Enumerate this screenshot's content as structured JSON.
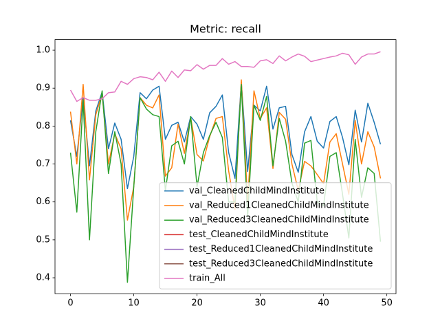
{
  "chart_data": {
    "type": "line",
    "title": "Metric: recall",
    "x": [
      0,
      1,
      2,
      3,
      4,
      5,
      6,
      7,
      8,
      9,
      10,
      11,
      12,
      13,
      14,
      15,
      16,
      17,
      18,
      19,
      20,
      21,
      22,
      23,
      24,
      25,
      26,
      27,
      28,
      29,
      30,
      31,
      32,
      33,
      34,
      35,
      36,
      37,
      38,
      39,
      40,
      41,
      42,
      43,
      44,
      45,
      46,
      47,
      48,
      49
    ],
    "xlim": [
      -2.45,
      51.45
    ],
    "xticks": [
      0,
      10,
      20,
      30,
      40,
      50
    ],
    "ylim": [
      0.358,
      1.028
    ],
    "yticks": [
      0.4,
      0.5,
      0.6,
      0.7,
      0.8,
      0.9,
      {
        "value": 1,
        "label": "1.0"
      }
    ],
    "legend": "lower right",
    "series": [
      {
        "name": "val_CleanedChildMindInstitute",
        "color": "#1f77b4",
        "values": [
          0.815,
          0.72,
          0.875,
          0.695,
          0.84,
          0.89,
          0.74,
          0.808,
          0.765,
          0.635,
          0.72,
          0.888,
          0.872,
          0.895,
          0.905,
          0.765,
          0.802,
          0.81,
          0.758,
          0.825,
          0.805,
          0.765,
          0.835,
          0.852,
          0.882,
          0.73,
          0.662,
          0.915,
          0.68,
          0.855,
          0.84,
          0.905,
          0.792,
          0.848,
          0.852,
          0.725,
          0.678,
          0.785,
          0.825,
          0.76,
          0.742,
          0.812,
          0.825,
          0.77,
          0.698,
          0.842,
          0.758,
          0.86,
          0.81,
          0.752
        ]
      },
      {
        "name": "val_Reduced1CleanedChildMindInstitute",
        "color": "#ff7f0e",
        "values": [
          0.838,
          0.7,
          0.91,
          0.658,
          0.83,
          0.885,
          0.7,
          0.78,
          0.74,
          0.552,
          0.64,
          0.875,
          0.855,
          0.848,
          0.882,
          0.668,
          0.69,
          0.805,
          0.728,
          0.822,
          0.725,
          0.708,
          0.772,
          0.82,
          0.825,
          0.682,
          0.58,
          0.922,
          0.6,
          0.893,
          0.82,
          0.848,
          0.688,
          0.836,
          0.818,
          0.7,
          0.63,
          0.707,
          0.695,
          0.672,
          0.648,
          0.758,
          0.78,
          0.7,
          0.62,
          0.815,
          0.7,
          0.785,
          0.745,
          0.662
        ]
      },
      {
        "name": "val_Reduced3CleanedChildMindInstitute",
        "color": "#2ca02c",
        "values": [
          0.73,
          0.573,
          0.868,
          0.5,
          0.785,
          0.893,
          0.675,
          0.785,
          0.7,
          0.388,
          0.64,
          0.875,
          0.845,
          0.83,
          0.825,
          0.63,
          0.748,
          0.76,
          0.7,
          0.825,
          0.64,
          0.73,
          0.775,
          0.81,
          0.77,
          0.6,
          0.6,
          0.91,
          0.56,
          0.855,
          0.815,
          0.878,
          0.695,
          0.82,
          0.76,
          0.65,
          0.6,
          0.755,
          0.762,
          0.6,
          0.59,
          0.72,
          0.73,
          0.62,
          0.505,
          0.765,
          0.612,
          0.69,
          0.675,
          0.495
        ]
      },
      {
        "name": "test_CleanedChildMindInstitute",
        "color": "#d62728",
        "values": [
          null,
          null,
          null,
          null,
          null,
          null,
          null,
          null,
          null,
          null,
          null,
          null,
          null,
          null,
          null,
          null,
          null,
          null,
          null,
          null,
          null,
          null,
          null,
          null,
          null,
          null,
          null,
          null,
          null,
          null,
          null,
          null,
          null,
          null,
          null,
          null,
          null,
          null,
          null,
          null,
          null,
          null,
          null,
          null,
          null,
          null,
          null,
          null,
          null,
          null
        ]
      },
      {
        "name": "test_Reduced1CleanedChildMindInstitute",
        "color": "#9467bd",
        "values": [
          null,
          null,
          null,
          null,
          null,
          null,
          null,
          null,
          null,
          null,
          null,
          null,
          null,
          null,
          null,
          null,
          null,
          null,
          null,
          null,
          null,
          null,
          null,
          null,
          null,
          null,
          null,
          null,
          null,
          null,
          null,
          null,
          null,
          null,
          null,
          null,
          null,
          null,
          null,
          null,
          null,
          null,
          null,
          null,
          null,
          null,
          null,
          null,
          null,
          null
        ]
      },
      {
        "name": "test_Reduced3CleanedChildMindInstitute",
        "color": "#8c564b",
        "values": [
          null,
          null,
          null,
          null,
          null,
          null,
          null,
          null,
          null,
          null,
          null,
          null,
          null,
          null,
          null,
          null,
          null,
          null,
          null,
          null,
          null,
          null,
          null,
          null,
          null,
          null,
          null,
          null,
          null,
          null,
          null,
          null,
          null,
          null,
          null,
          null,
          null,
          null,
          null,
          null,
          null,
          null,
          null,
          null,
          null,
          null,
          null,
          null,
          null,
          null
        ]
      },
      {
        "name": "train_All",
        "color": "#e377c2",
        "values": [
          0.895,
          0.865,
          0.875,
          0.868,
          0.868,
          0.872,
          0.888,
          0.89,
          0.918,
          0.91,
          0.925,
          0.93,
          0.928,
          0.922,
          0.942,
          0.918,
          0.945,
          0.928,
          0.948,
          0.946,
          0.962,
          0.95,
          0.96,
          0.96,
          0.978,
          0.963,
          0.97,
          0.957,
          0.957,
          0.955,
          0.972,
          0.975,
          0.965,
          0.985,
          0.972,
          0.982,
          0.99,
          0.984,
          0.97,
          0.974,
          0.978,
          0.982,
          0.985,
          0.992,
          0.988,
          0.963,
          0.982,
          0.99,
          0.99,
          0.996
        ]
      }
    ]
  }
}
